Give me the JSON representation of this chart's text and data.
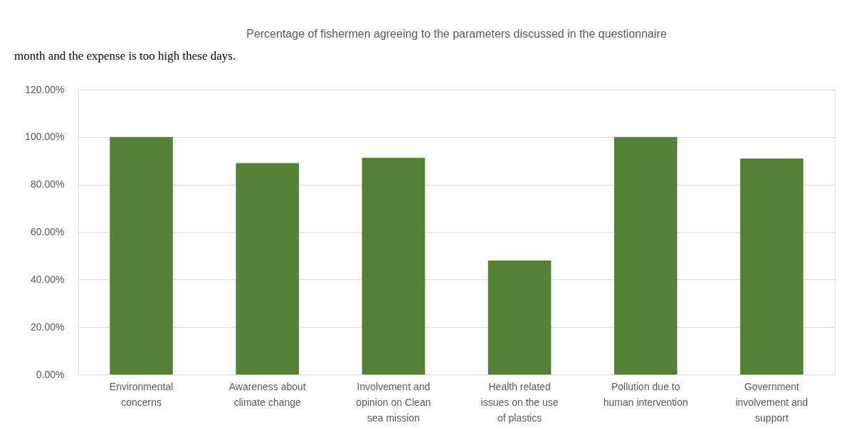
{
  "chart_data": {
    "type": "bar",
    "title": "Percentage of fishermen agreeing to the parameters discussed in the questionnaire",
    "annotations": [
      "month and the expense is too high these days."
    ],
    "categories": [
      "Environmental concerns",
      "Awareness about climate change",
      "Involvement and opinion on Clean sea mission",
      "Health related issues on the use of plastics",
      "Pollution due to human intervention",
      "Government involvement and support"
    ],
    "values": [
      100,
      89,
      91.3,
      48,
      100,
      91
    ],
    "color": "#538135",
    "ylim": [
      0,
      120
    ],
    "yticks": [
      {
        "value": 0,
        "label": "0.00%"
      },
      {
        "value": 20,
        "label": "20.00%"
      },
      {
        "value": 40,
        "label": "40.00%"
      },
      {
        "value": 60,
        "label": "60.00%"
      },
      {
        "value": 80,
        "label": "80.00%"
      },
      {
        "value": 100,
        "label": "100.00%"
      },
      {
        "value": 120,
        "label": "120.00%"
      }
    ],
    "grid": "y"
  }
}
